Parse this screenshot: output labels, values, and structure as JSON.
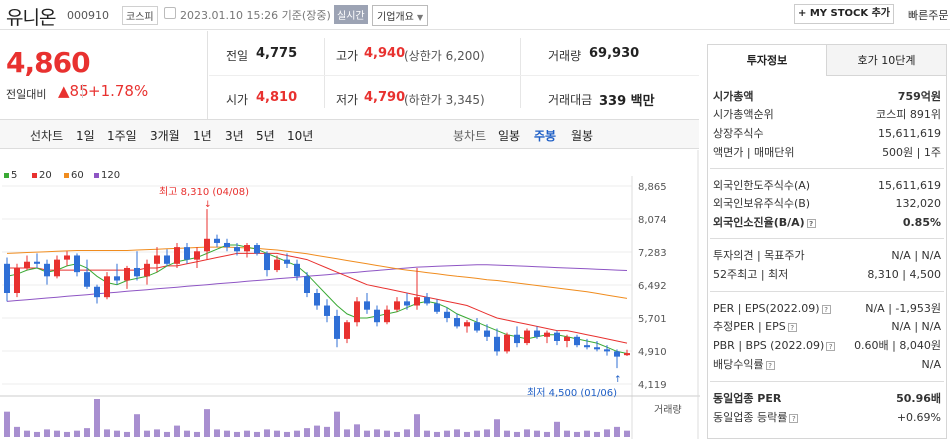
{
  "header": {
    "title": "유니온",
    "code": "000910",
    "market": "코스피",
    "time": "2023.01.10 15:26 기준(장중)",
    "live": "실시간",
    "company_info": "기업개요",
    "my_stock": "+ MY STOCK 추가",
    "quick_order": "빠른주문"
  },
  "price": {
    "current": "4,860",
    "change_label": "전일대비",
    "change": "▲85",
    "change_pct": "+1.78%"
  },
  "stats": {
    "prev_label": "전일",
    "prev": "4,775",
    "high_label": "고가",
    "high": "4,940",
    "upper_limit": "(상한가 6,200)",
    "volume_label": "거래량",
    "volume": "69,930",
    "open_label": "시가",
    "open": "4,810",
    "low_label": "저가",
    "low": "4,790",
    "lower_limit": "(하한가 3,345)",
    "amount_label": "거래대금",
    "amount": "339 백만"
  },
  "chart_tabs": {
    "line_label": "선차트",
    "line_items": [
      "1일",
      "1주일",
      "3개월",
      "1년",
      "3년",
      "5년",
      "10년"
    ],
    "candle_label": "봉차트",
    "candle_items": [
      "일봉",
      "주봉",
      "월봉"
    ],
    "candle_active": "주봉"
  },
  "legend": [
    {
      "label": "5",
      "color": "#3aaa35"
    },
    {
      "label": "20",
      "color": "#e8312f"
    },
    {
      "label": "60",
      "color": "#f08c1e"
    },
    {
      "label": "120",
      "color": "#8e55c4"
    }
  ],
  "chart_data": {
    "type": "candlestick",
    "y_ticks": [
      "8,865",
      "8,074",
      "7,283",
      "6,492",
      "5,701",
      "4,910",
      "4,119"
    ],
    "ylim": [
      4119,
      8865
    ],
    "high_annotation": "최고 8,310 (04/08)",
    "low_annotation": "최저 4,500 (01/06)",
    "volume_label": "거래량",
    "candles": [
      [
        7000,
        7150,
        6100,
        6300
      ],
      [
        6300,
        7000,
        6200,
        6900
      ],
      [
        6900,
        7200,
        6850,
        7050
      ],
      [
        7050,
        7250,
        6900,
        7000
      ],
      [
        7000,
        7100,
        6500,
        6700
      ],
      [
        6700,
        7200,
        6650,
        7100
      ],
      [
        7100,
        7300,
        6950,
        7200
      ],
      [
        7200,
        7250,
        6700,
        6800
      ],
      [
        6800,
        7100,
        6400,
        6450
      ],
      [
        6450,
        6500,
        6050,
        6200
      ],
      [
        6200,
        6800,
        6150,
        6700
      ],
      [
        6700,
        7000,
        6500,
        6600
      ],
      [
        6600,
        6950,
        6400,
        6900
      ],
      [
        6900,
        7300,
        6600,
        6700
      ],
      [
        6700,
        7100,
        6500,
        7000
      ],
      [
        7000,
        7400,
        6800,
        7200
      ],
      [
        7200,
        7350,
        6950,
        7000
      ],
      [
        7000,
        7500,
        6900,
        7400
      ],
      [
        7400,
        7500,
        7000,
        7100
      ],
      [
        7100,
        7400,
        6900,
        7300
      ],
      [
        7300,
        8310,
        7100,
        7600
      ],
      [
        7600,
        7700,
        7400,
        7500
      ],
      [
        7500,
        7600,
        7300,
        7400
      ],
      [
        7400,
        7500,
        7200,
        7300
      ],
      [
        7300,
        7500,
        7150,
        7450
      ],
      [
        7450,
        7500,
        7200,
        7250
      ],
      [
        7250,
        7300,
        6700,
        6850
      ],
      [
        6850,
        7200,
        6800,
        7100
      ],
      [
        7100,
        7250,
        6900,
        7000
      ],
      [
        7000,
        7100,
        6600,
        6700
      ],
      [
        6700,
        6800,
        6200,
        6300
      ],
      [
        6300,
        6400,
        5900,
        6000
      ],
      [
        6000,
        6150,
        5600,
        5750
      ],
      [
        5750,
        5900,
        5000,
        5200
      ],
      [
        5200,
        5650,
        5100,
        5600
      ],
      [
        5600,
        6200,
        5500,
        6100
      ],
      [
        6100,
        6300,
        5800,
        5900
      ],
      [
        5900,
        6000,
        5500,
        5600
      ],
      [
        5600,
        6000,
        5550,
        5900
      ],
      [
        5900,
        6200,
        5850,
        6100
      ],
      [
        6100,
        6300,
        5900,
        6000
      ],
      [
        6000,
        6900,
        5900,
        6200
      ],
      [
        6200,
        6300,
        6000,
        6050
      ],
      [
        6050,
        6150,
        5800,
        5850
      ],
      [
        5850,
        5950,
        5600,
        5700
      ],
      [
        5700,
        5800,
        5450,
        5500
      ],
      [
        5500,
        5650,
        5350,
        5600
      ],
      [
        5600,
        5700,
        5350,
        5400
      ],
      [
        5400,
        5550,
        5150,
        5250
      ],
      [
        5250,
        5450,
        4800,
        4900
      ],
      [
        4900,
        5350,
        4850,
        5300
      ],
      [
        5300,
        5500,
        5000,
        5100
      ],
      [
        5100,
        5450,
        5050,
        5400
      ],
      [
        5400,
        5500,
        5200,
        5250
      ],
      [
        5250,
        5400,
        5100,
        5350
      ],
      [
        5350,
        5400,
        5050,
        5150
      ],
      [
        5150,
        5300,
        5000,
        5250
      ],
      [
        5250,
        5300,
        5000,
        5050
      ],
      [
        5050,
        5200,
        4950,
        5000
      ],
      [
        5000,
        5150,
        4900,
        4950
      ],
      [
        4950,
        5050,
        4800,
        4900
      ],
      [
        4900,
        4950,
        4500,
        4775
      ],
      [
        4810,
        4940,
        4790,
        4860
      ]
    ],
    "ma5": [
      6700,
      6750,
      6850,
      6900,
      6800,
      6850,
      6950,
      7000,
      6900,
      6700,
      6550,
      6500,
      6600,
      6650,
      6700,
      6800,
      6950,
      7050,
      7100,
      7150,
      7250,
      7350,
      7450,
      7450,
      7400,
      7350,
      7250,
      7150,
      7050,
      6950,
      6750,
      6500,
      6250,
      6000,
      5800,
      5700,
      5700,
      5750,
      5800,
      5850,
      5950,
      6050,
      6100,
      6050,
      5950,
      5800,
      5700,
      5600,
      5500,
      5400,
      5300,
      5250,
      5200,
      5250,
      5300,
      5300,
      5250,
      5200,
      5150,
      5100,
      5000,
      4900,
      4850
    ],
    "ma20": [
      6900,
      6900,
      6900,
      6900,
      6850,
      6850,
      6850,
      6850,
      6850,
      6850,
      6850,
      6850,
      6850,
      6850,
      6900,
      6900,
      6950,
      6950,
      7000,
      7050,
      7100,
      7150,
      7200,
      7250,
      7250,
      7250,
      7250,
      7250,
      7200,
      7150,
      7100,
      7000,
      6900,
      6800,
      6700,
      6600,
      6500,
      6450,
      6400,
      6350,
      6300,
      6250,
      6200,
      6150,
      6100,
      6050,
      6000,
      5900,
      5800,
      5700,
      5650,
      5600,
      5550,
      5500,
      5450,
      5400,
      5400,
      5350,
      5300,
      5250,
      5200,
      5150,
      5100
    ],
    "ma60": [
      7250,
      7260,
      7270,
      7280,
      7290,
      7300,
      7310,
      7320,
      7320,
      7320,
      7320,
      7320,
      7320,
      7330,
      7340,
      7350,
      7360,
      7370,
      7380,
      7390,
      7400,
      7400,
      7400,
      7390,
      7380,
      7370,
      7350,
      7330,
      7300,
      7270,
      7240,
      7200,
      7160,
      7120,
      7080,
      7040,
      7000,
      6960,
      6920,
      6880,
      6850,
      6820,
      6790,
      6760,
      6730,
      6700,
      6680,
      6650,
      6620,
      6600,
      6570,
      6540,
      6510,
      6480,
      6450,
      6420,
      6390,
      6360,
      6330,
      6290,
      6250,
      6210,
      6170
    ],
    "ma120": [
      6100,
      6120,
      6140,
      6160,
      6180,
      6200,
      6220,
      6240,
      6260,
      6280,
      6300,
      6320,
      6340,
      6360,
      6380,
      6400,
      6420,
      6440,
      6460,
      6480,
      6500,
      6520,
      6540,
      6560,
      6580,
      6600,
      6620,
      6640,
      6660,
      6680,
      6700,
      6720,
      6740,
      6760,
      6780,
      6800,
      6820,
      6840,
      6860,
      6880,
      6900,
      6920,
      6930,
      6940,
      6950,
      6960,
      6970,
      6975,
      6975,
      6970,
      6960,
      6950,
      6940,
      6930,
      6920,
      6910,
      6900,
      6890,
      6880,
      6870,
      6860,
      6850,
      6840
    ],
    "volume": [
      20,
      8,
      5,
      4,
      6,
      5,
      4,
      5,
      7,
      30,
      6,
      5,
      4,
      18,
      5,
      6,
      4,
      9,
      5,
      4,
      22,
      6,
      5,
      4,
      5,
      4,
      6,
      5,
      4,
      5,
      7,
      9,
      8,
      20,
      6,
      10,
      5,
      6,
      5,
      4,
      6,
      18,
      5,
      4,
      5,
      6,
      4,
      5,
      6,
      14,
      5,
      4,
      6,
      5,
      4,
      12,
      5,
      4,
      5,
      4,
      6,
      8,
      5
    ]
  },
  "right_panel": {
    "tab_invest": "투자정보",
    "tab_hoga": "호가 10단계",
    "market_cap_label": "시가총액",
    "market_cap": "759억원",
    "market_cap_rank_label": "시가총액순위",
    "market_cap_rank": "코스피 891위",
    "shares_label": "상장주식수",
    "shares": "15,611,619",
    "face_label": "액면가 | 매매단위",
    "face": "500원 | 1주",
    "foreign_limit_label": "외국인한도주식수(A)",
    "foreign_limit": "15,611,619",
    "foreign_hold_label": "외국인보유주식수(B)",
    "foreign_hold": "132,020",
    "foreign_ratio_label": "외국인소진율(B/A)",
    "foreign_ratio": "0.85%",
    "opinion_label": "투자의견 | 목표주가",
    "opinion": "N/A | N/A",
    "week52_label": "52주최고 | 최저",
    "week52": "8,310 | 4,500",
    "per_label": "PER | EPS(2022.09)",
    "per": "N/A | -1,953원",
    "est_per_label": "추정PER | EPS",
    "est_per": "N/A | N/A",
    "pbr_label": "PBR | BPS (2022.09)",
    "pbr": "0.60배 | 8,040원",
    "div_label": "배당수익률",
    "div": "N/A",
    "sector_per_label": "동일업종 PER",
    "sector_per": "50.96배",
    "sector_chg_label": "동일업종 등락률",
    "sector_chg": "+0.69%"
  }
}
